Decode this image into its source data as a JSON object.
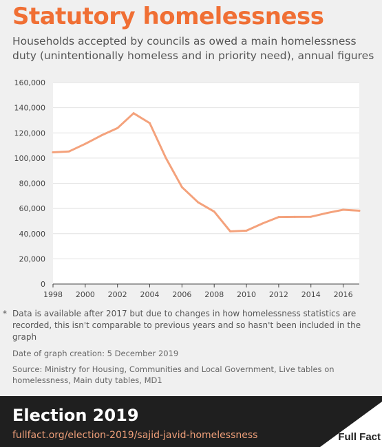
{
  "header": {
    "title": "Statutory homelessness",
    "subtitle": "Households accepted by councils as owed a main homelessness duty (unintentionally homeless and in priority need), annual figures"
  },
  "chart_data": {
    "type": "line",
    "x": [
      1998,
      1999,
      2000,
      2001,
      2002,
      2003,
      2004,
      2005,
      2006,
      2007,
      2008,
      2009,
      2010,
      2011,
      2012,
      2013,
      2014,
      2015,
      2016,
      2017
    ],
    "series": [
      {
        "values": [
          104600,
          105300,
          111300,
          118000,
          123800,
          135600,
          127800,
          100200,
          76900,
          64900,
          57500,
          41800,
          42400,
          48100,
          53200,
          53300,
          53400,
          56400,
          59000,
          58200
        ]
      }
    ],
    "xlim": [
      1998,
      2017
    ],
    "ylim": [
      0,
      160000
    ],
    "xticks": [
      1998,
      2000,
      2002,
      2004,
      2006,
      2008,
      2010,
      2012,
      2014,
      2016
    ],
    "yticks": [
      0,
      20000,
      40000,
      60000,
      80000,
      100000,
      120000,
      140000,
      160000
    ],
    "ytick_labels": [
      "0",
      "20,000",
      "40,000",
      "60,000",
      "80,000",
      "100,000",
      "120,000",
      "140,000",
      "160,000"
    ],
    "grid": "horizontal",
    "line_color": "#f4a27c"
  },
  "footnote": {
    "marker": "*",
    "text": "Data is available after 2017 but due to changes in how homelessness statistics are recorded, this isn't comparable to previous years and so hasn't been included in the graph"
  },
  "meta": {
    "date": "Date of graph creation: 5 December 2019",
    "source": "Source: Ministry for Housing, Communities and Local Government, Live tables on homelessness, Main duty tables, MD1"
  },
  "footer": {
    "event": "Election 2019",
    "url": "fullfact.org/election-2019/sajid-javid-homelessness",
    "logo": "Full Fact"
  }
}
